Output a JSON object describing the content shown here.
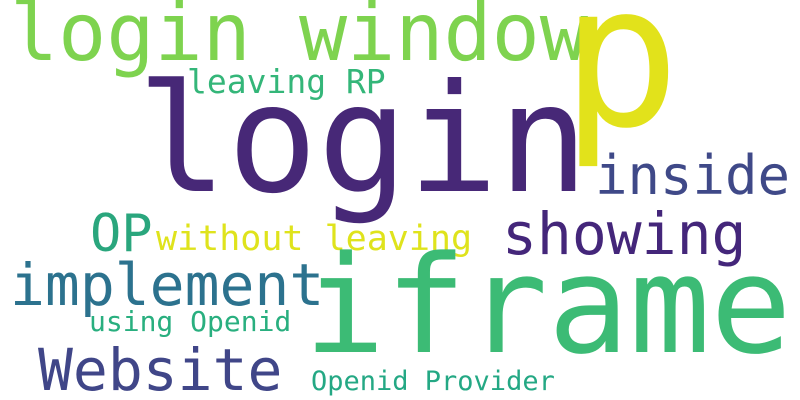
{
  "words": {
    "p": {
      "text": "p",
      "color": "#e2e21b"
    },
    "login": {
      "text": "login",
      "color": "#472877"
    },
    "login_window": {
      "text": "login window",
      "color": "#7ed34f"
    },
    "leaving_rp": {
      "text": "leaving RP",
      "color": "#34b679"
    },
    "inside": {
      "text": "inside",
      "color": "#3f4988"
    },
    "op": {
      "text": "OP",
      "color": "#2aa67d"
    },
    "without_leaving": {
      "text": "without leaving",
      "color": "#dfe31c"
    },
    "showing": {
      "text": "showing",
      "color": "#44267a"
    },
    "implement": {
      "text": "implement",
      "color": "#2c728e"
    },
    "iframe": {
      "text": "iframe",
      "color": "#3cbb75"
    },
    "using_openid": {
      "text": "using Openid",
      "color": "#29af7f"
    },
    "website": {
      "text": "Website",
      "color": "#404688"
    },
    "openid_provider": {
      "text": "Openid Provider",
      "color": "#24a884"
    }
  }
}
